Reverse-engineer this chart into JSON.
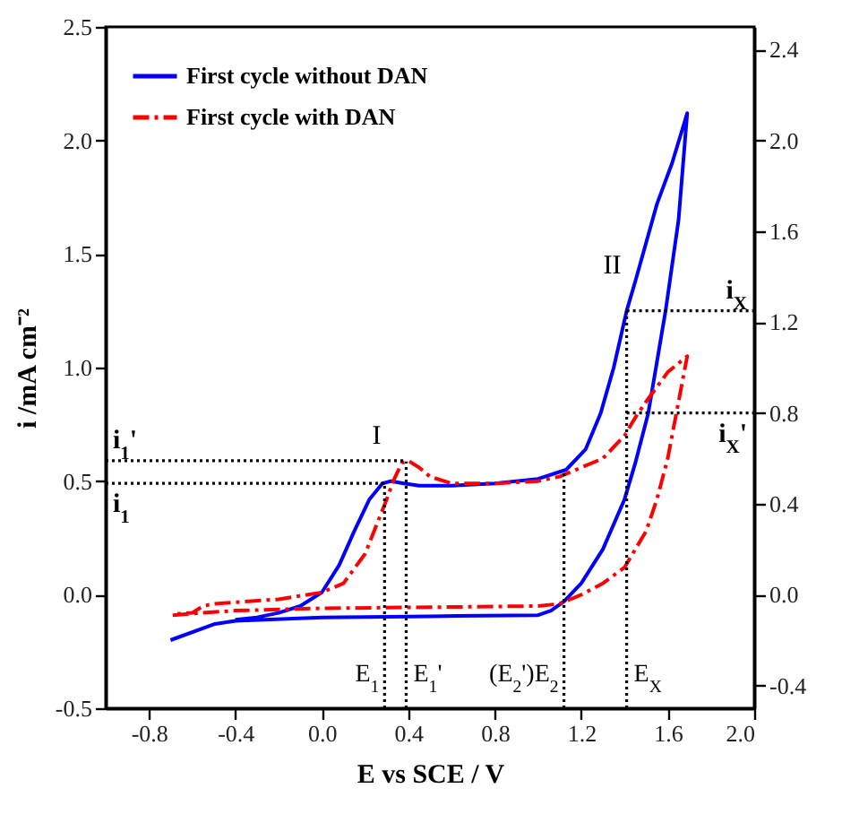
{
  "chart_data": {
    "type": "line",
    "xlabel": "E vs SCE / V",
    "ylabel": "i /mA cm⁻²",
    "xlim": [
      -1.0,
      2.0
    ],
    "xticks": [
      -0.8,
      -0.4,
      {
        "value": 0,
        "label": "0.0"
      },
      0.4,
      0.8,
      1.2,
      1.6,
      {
        "value": 2,
        "label": "2.0"
      }
    ],
    "ylim": [
      -0.5,
      2.5
    ],
    "yticks": [
      -0.5,
      {
        "value": 0,
        "label": "0.0"
      },
      0.5,
      {
        "value": 1,
        "label": "1.0"
      },
      1.5,
      {
        "value": 2,
        "label": "2.0"
      },
      2.5
    ],
    "y2lim": [
      -0.5,
      2.5
    ],
    "y2ticks": [
      -0.4,
      {
        "value": 0,
        "label": "0.0"
      },
      0.4,
      0.8,
      1.2,
      1.6,
      {
        "value": 2,
        "label": "2.0"
      },
      2.4
    ],
    "legend": "top left",
    "grid": false,
    "series": [
      {
        "name": "First cycle without DAN",
        "color": "#0000ff",
        "line_style": "solid",
        "x": [
          -0.7,
          -0.5,
          -0.4,
          0.0,
          0.5,
          1.0,
          1.06,
          1.12,
          1.2,
          1.3,
          1.4,
          1.45,
          1.51,
          1.59,
          1.65,
          1.69,
          1.62,
          1.55,
          1.5,
          1.45,
          1.41,
          1.35,
          1.29,
          1.22,
          1.13,
          1.0,
          0.8,
          0.6,
          0.45,
          0.38,
          0.32,
          0.28,
          0.22,
          0.15,
          0.08,
          0.0,
          -0.1,
          -0.2,
          -0.3,
          -0.4
        ],
        "values": [
          -0.2,
          -0.13,
          -0.115,
          -0.1,
          -0.095,
          -0.09,
          -0.07,
          -0.03,
          0.05,
          0.2,
          0.42,
          0.58,
          0.8,
          1.25,
          1.65,
          2.12,
          1.9,
          1.72,
          1.55,
          1.38,
          1.25,
          1.0,
          0.8,
          0.64,
          0.55,
          0.51,
          0.49,
          0.48,
          0.48,
          0.49,
          0.5,
          0.49,
          0.42,
          0.28,
          0.13,
          0.01,
          -0.05,
          -0.08,
          -0.1,
          -0.11
        ]
      },
      {
        "name": "First cycle with DAN",
        "color": "#ff0000",
        "line_style": "dashed",
        "x": [
          -0.69,
          -0.55,
          -0.4,
          0.0,
          0.5,
          1.0,
          1.1,
          1.2,
          1.3,
          1.4,
          1.5,
          1.55,
          1.6,
          1.64,
          1.67,
          1.69,
          1.6,
          1.5,
          1.45,
          1.4,
          1.3,
          1.2,
          1.1,
          1.0,
          0.8,
          0.6,
          0.5,
          0.45,
          0.4,
          0.37,
          0.33,
          0.3,
          0.25,
          0.2,
          0.1,
          0.0,
          -0.2,
          -0.5,
          -0.55,
          -0.6,
          -0.67
        ],
        "values": [
          -0.09,
          -0.08,
          -0.07,
          -0.06,
          -0.055,
          -0.05,
          -0.04,
          0.0,
          0.05,
          0.12,
          0.28,
          0.42,
          0.6,
          0.8,
          0.95,
          1.05,
          0.98,
          0.85,
          0.78,
          0.7,
          0.6,
          0.56,
          0.52,
          0.5,
          0.49,
          0.49,
          0.52,
          0.56,
          0.59,
          0.58,
          0.5,
          0.42,
          0.3,
          0.18,
          0.05,
          0.01,
          -0.02,
          -0.04,
          -0.05,
          -0.08,
          -0.085
        ]
      }
    ],
    "ref_lines": [
      {
        "axis": "x",
        "value": 0.29,
        "label": "E$_{1}$",
        "color": "#000000",
        "line_style": "dotted"
      },
      {
        "axis": "x",
        "value": 0.39,
        "label": "E$_{1}$'",
        "color": "#000000",
        "line_style": "dotted"
      },
      {
        "axis": "x",
        "value": 1.12,
        "label": "(E$_{2}$')E$_{2}$",
        "color": "#000000",
        "line_style": "dotted"
      },
      {
        "axis": "x",
        "value": 1.41,
        "label": "E$_{X}$",
        "color": "#000000",
        "line_style": "dotted"
      },
      {
        "axis": "y",
        "value": 0.59,
        "label": "i$_{1}$'",
        "color": "#000000",
        "line_style": "dotted"
      },
      {
        "axis": "y",
        "value": 0.49,
        "label": "i$_{1}$",
        "color": "#000000",
        "line_style": "dotted"
      },
      {
        "axis": "y",
        "value": 1.25,
        "label": "i$_{X}$",
        "color": "#000000",
        "line_style": "dotted"
      },
      {
        "axis": "y",
        "value": 0.8,
        "label": "i$_{X}$'",
        "color": "#000000",
        "line_style": "dotted"
      }
    ],
    "annotations": [
      {
        "text": "I",
        "x": 0.32,
        "y": 0.5
      },
      {
        "text": "II",
        "x": 1.41,
        "y": 1.25
      }
    ]
  }
}
